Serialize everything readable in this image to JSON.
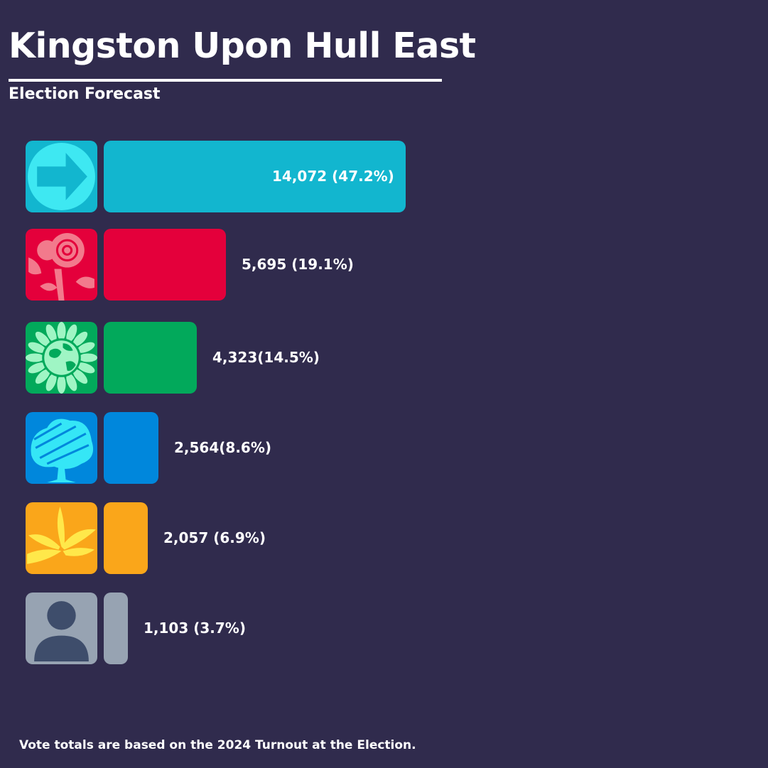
{
  "title": "Kingston Upon Hull East",
  "subtitle": "Election Forecast",
  "footer": "Vote totals are based on the 2024 Turnout at the Election.",
  "chart_data": {
    "type": "bar",
    "orientation": "horizontal",
    "categories": [
      "Reform UK",
      "Labour",
      "Green",
      "Conservative",
      "Liberal Democrats",
      "Other"
    ],
    "values": [
      14072,
      5695,
      4323,
      2564,
      2057,
      1103
    ],
    "percent": [
      47.2,
      19.1,
      14.5,
      8.6,
      6.9,
      3.7
    ],
    "labels": [
      "14,072 (47.2%)",
      "5,695 (19.1%)",
      "4,323(14.5%)",
      "2,564(8.6%)",
      "2,057 (6.9%)",
      "1,103 (3.7%)"
    ],
    "colors": [
      "#12b6cf",
      "#e4003b",
      "#02a95b",
      "#0087dc",
      "#faa61a",
      "#97a3b2"
    ],
    "icons": [
      "reform-arrow-icon",
      "labour-rose-icon",
      "green-globe-icon",
      "conservative-tree-icon",
      "libdem-bird-icon",
      "person-icon"
    ],
    "legend": "none",
    "grid": false
  }
}
